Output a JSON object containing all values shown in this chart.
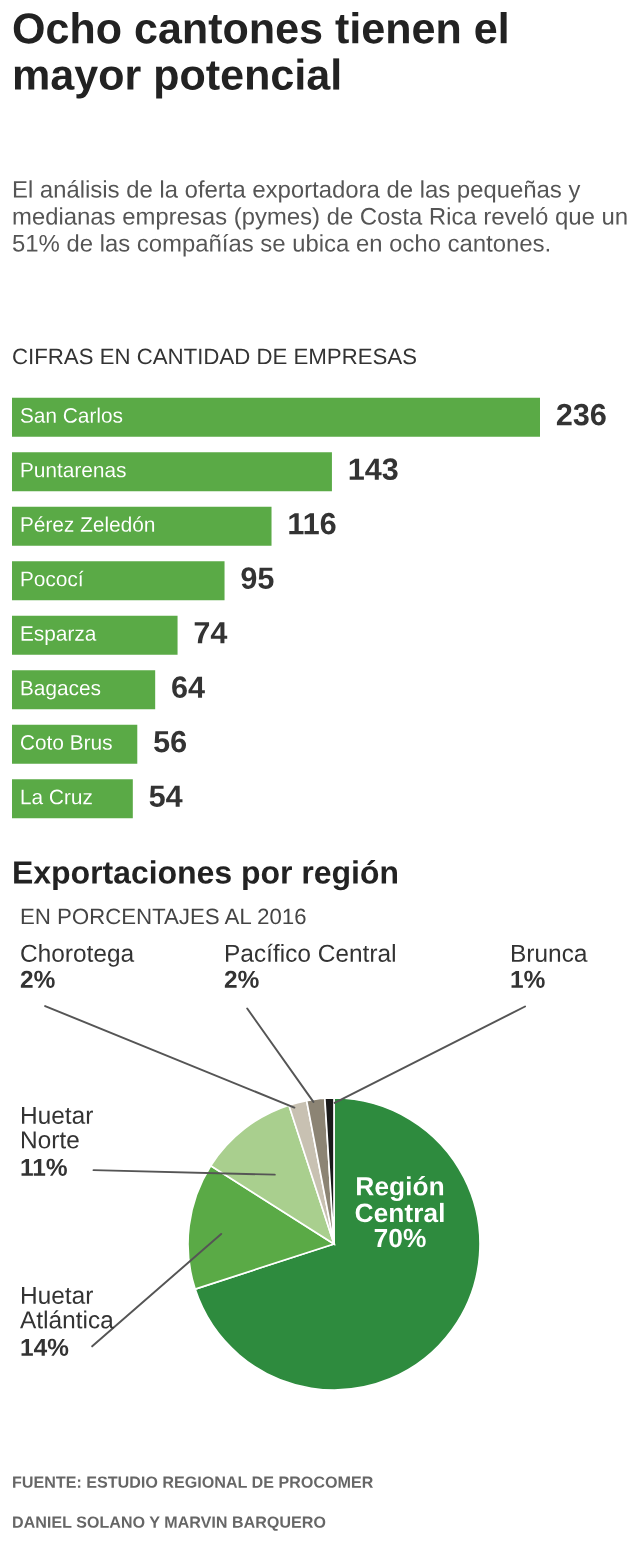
{
  "chart_data": [
    {
      "type": "bar",
      "orientation": "horizontal",
      "title": "Ocho cantones tienen el mayor potencial",
      "subtitle": "El análisis de la oferta exportadora de las pequeñas y medianas empresas (pymes) de Costa Rica reveló que un 51% de las compañías se ubica en ocho cantones.",
      "annotations": [
        "CIFRAS EN CANTIDAD DE EMPRESAS"
      ],
      "categories": [
        "San Carlos",
        "Puntarenas",
        "Pérez Zeledón",
        "Pococí",
        "Esparza",
        "Bagaces",
        "Coto Brus",
        "La Cruz"
      ],
      "values": [
        236,
        143,
        116,
        95,
        74,
        64,
        56,
        54
      ],
      "color": "#5aaa46",
      "data_labels": true
    },
    {
      "type": "pie",
      "title": "Exportaciones por región",
      "subtitle": "EN PORCENTAJES AL 2016",
      "annotations": [
        "FUENTE: ESTUDIO REGIONAL DE PROCOMER",
        "DANIEL SOLANO Y MARVIN BARQUERO"
      ],
      "categories": [
        "Región\nCentral",
        "Huetar\nAtlántica",
        "Huetar\nNorte",
        "Chorotega",
        "Pacífico Central",
        "Brunca"
      ],
      "values": [
        70,
        14,
        11,
        2,
        2,
        1
      ],
      "value_labels": [
        "70%",
        "14%",
        "11%",
        "2%",
        "2%",
        "1%"
      ],
      "colors": [
        "#2e8b3e",
        "#5aaa46",
        "#a9cf8e",
        "#c8c1b2",
        "#8c8474",
        "#1a1a1a"
      ]
    }
  ]
}
